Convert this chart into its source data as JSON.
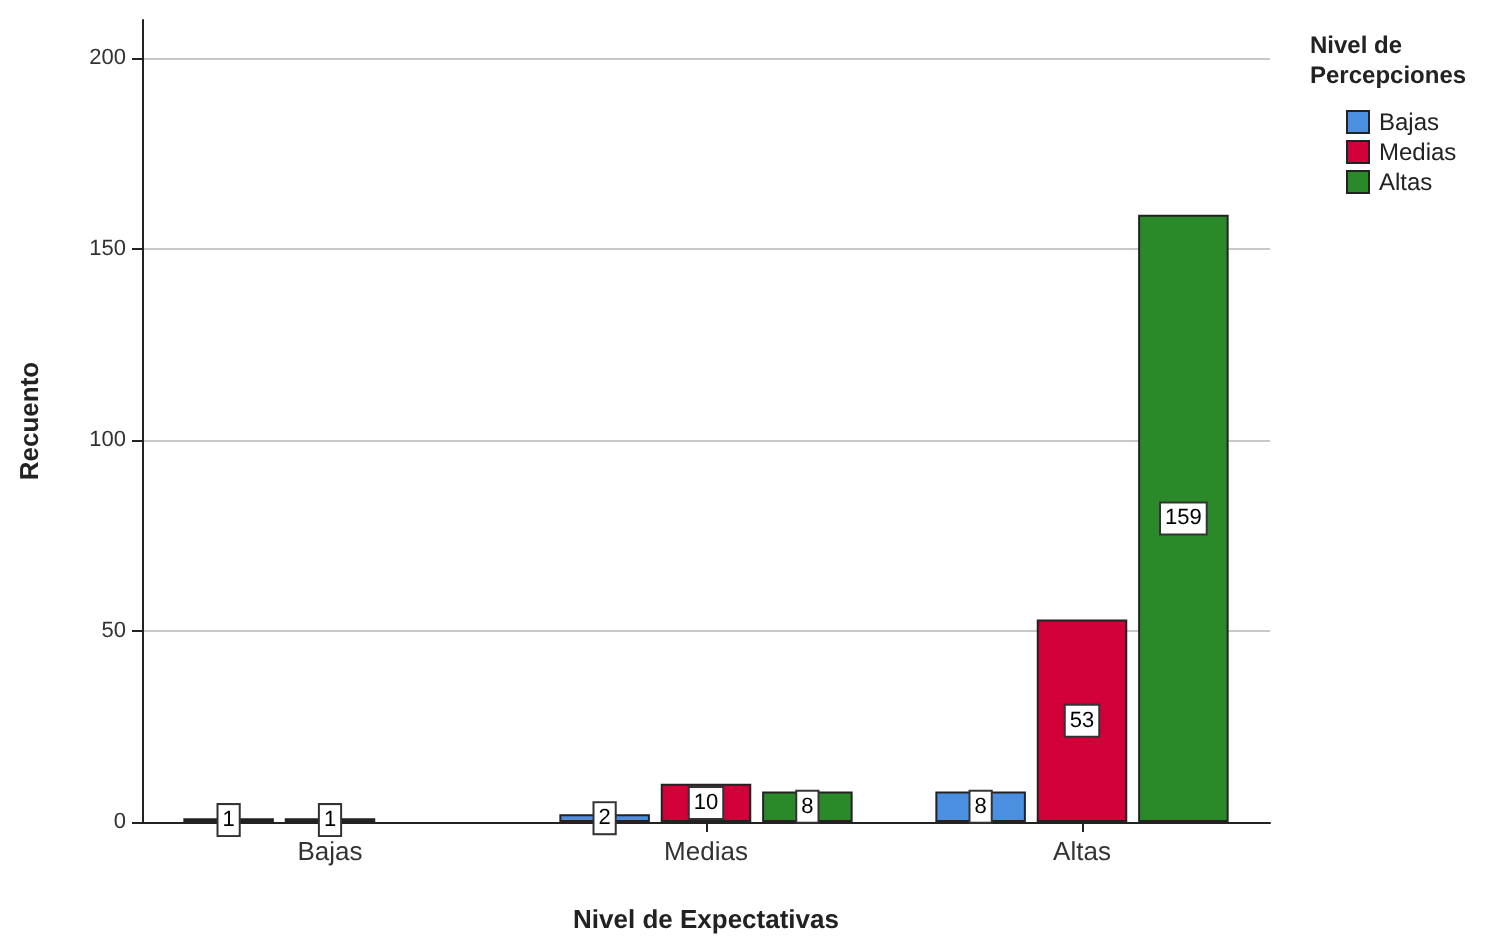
{
  "chart_data": {
    "type": "bar",
    "xlabel": "Nivel de Expectativas",
    "ylabel": "Recuento",
    "legend_title": "Nivel de Percepciones",
    "categories": [
      "Bajas",
      "Medias",
      "Altas"
    ],
    "series": [
      {
        "name": "Bajas",
        "color": "#4a8fe0",
        "values": [
          1,
          2,
          8
        ]
      },
      {
        "name": "Medias",
        "color": "#d10038",
        "values": [
          1,
          10,
          53
        ]
      },
      {
        "name": "Altas",
        "color": "#2a8a2a",
        "values": [
          null,
          8,
          159
        ]
      }
    ],
    "ylim": [
      0,
      210
    ],
    "yticks": [
      0,
      50,
      100,
      150,
      200
    ],
    "grid": "y",
    "legend": "top right",
    "data_labels": true
  }
}
